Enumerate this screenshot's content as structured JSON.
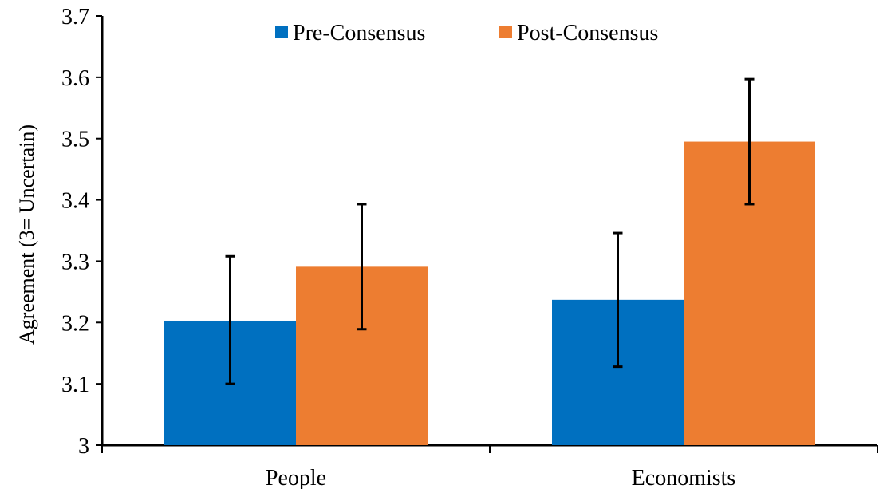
{
  "chart_data": {
    "type": "bar",
    "title": "",
    "xlabel": "",
    "ylabel": "Agreement (3= Uncertain)",
    "categories": [
      "People",
      "Economists"
    ],
    "ylim": [
      3,
      3.7
    ],
    "yticks": [
      3,
      3.1,
      3.2,
      3.3,
      3.4,
      3.5,
      3.6,
      3.7
    ],
    "ytick_labels": [
      "3",
      "3.1",
      "3.2",
      "3.3",
      "3.4",
      "3.5",
      "3.6",
      "3.7"
    ],
    "grid": false,
    "legend_position": "top-center",
    "series": [
      {
        "name": "Pre-Consensus",
        "color": "#0070C0",
        "values": [
          3.203,
          3.237
        ],
        "error_low": [
          3.1,
          3.128
        ],
        "error_high": [
          3.308,
          3.346
        ]
      },
      {
        "name": "Post-Consensus",
        "color": "#ED7D31",
        "values": [
          3.291,
          3.495
        ],
        "error_low": [
          3.189,
          3.393
        ],
        "error_high": [
          3.393,
          3.597
        ]
      }
    ]
  }
}
